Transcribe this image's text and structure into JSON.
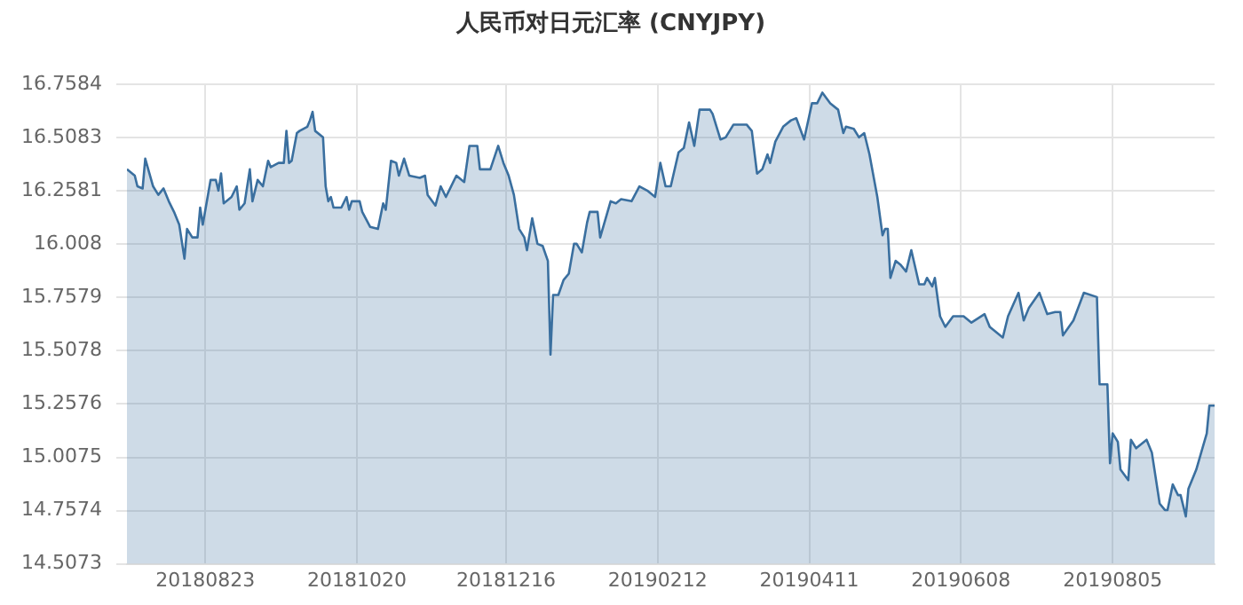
{
  "chart_data": {
    "type": "area",
    "title": "人民币对日元汇率 (CNYJPY)",
    "x": [
      "2018-07-24",
      "2018-07-27",
      "2018-07-28",
      "2018-07-30",
      "2018-07-31",
      "2018-08-03",
      "2018-08-05",
      "2018-08-07",
      "2018-08-09",
      "2018-08-11",
      "2018-08-13",
      "2018-08-15",
      "2018-08-16",
      "2018-08-18",
      "2018-08-20",
      "2018-08-21",
      "2018-08-22",
      "2018-08-25",
      "2018-08-27",
      "2018-08-28",
      "2018-08-29",
      "2018-08-30",
      "2018-09-02",
      "2018-09-04",
      "2018-09-05",
      "2018-09-07",
      "2018-09-09",
      "2018-09-10",
      "2018-09-12",
      "2018-09-14",
      "2018-09-16",
      "2018-09-17",
      "2018-09-20",
      "2018-09-22",
      "2018-09-23",
      "2018-09-24",
      "2018-09-25",
      "2018-09-27",
      "2018-09-28",
      "2018-10-01",
      "2018-10-02",
      "2018-10-03",
      "2018-10-04",
      "2018-10-07",
      "2018-10-08",
      "2018-10-09",
      "2018-10-10",
      "2018-10-11",
      "2018-10-14",
      "2018-10-16",
      "2018-10-17",
      "2018-10-18",
      "2018-10-21",
      "2018-10-22",
      "2018-10-25",
      "2018-10-28",
      "2018-10-30",
      "2018-10-31",
      "2018-11-02",
      "2018-11-04",
      "2018-11-05",
      "2018-11-07",
      "2018-11-09",
      "2018-11-13",
      "2018-11-15",
      "2018-11-16",
      "2018-11-19",
      "2018-11-21",
      "2018-11-23",
      "2018-11-27",
      "2018-11-30",
      "2018-12-02",
      "2018-12-05",
      "2018-12-06",
      "2018-12-10",
      "2018-12-13",
      "2018-12-15",
      "2018-12-17",
      "2018-12-19",
      "2018-12-21",
      "2018-12-23",
      "2018-12-24",
      "2018-12-26",
      "2018-12-28",
      "2018-12-30",
      "2019-01-01",
      "2019-01-02",
      "2019-01-03",
      "2019-01-05",
      "2019-01-07",
      "2019-01-09",
      "2019-01-11",
      "2019-01-12",
      "2019-01-14",
      "2019-01-16",
      "2019-01-17",
      "2019-01-20",
      "2019-01-21",
      "2019-01-25",
      "2019-01-27",
      "2019-01-29",
      "2019-02-02",
      "2019-02-05",
      "2019-02-08",
      "2019-02-11",
      "2019-02-13",
      "2019-02-15",
      "2019-02-17",
      "2019-02-20",
      "2019-02-22",
      "2019-02-24",
      "2019-02-26",
      "2019-02-28",
      "2019-03-04",
      "2019-03-05",
      "2019-03-08",
      "2019-03-10",
      "2019-03-13",
      "2019-03-18",
      "2019-03-20",
      "2019-03-22",
      "2019-03-24",
      "2019-03-26",
      "2019-03-27",
      "2019-03-29",
      "2019-04-01",
      "2019-04-04",
      "2019-04-06",
      "2019-04-09",
      "2019-04-12",
      "2019-04-14",
      "2019-04-16",
      "2019-04-19",
      "2019-04-22",
      "2019-04-24",
      "2019-04-25",
      "2019-04-28",
      "2019-04-30",
      "2019-05-02",
      "2019-05-04",
      "2019-05-07",
      "2019-05-09",
      "2019-05-10",
      "2019-05-11",
      "2019-05-12",
      "2019-05-14",
      "2019-05-16",
      "2019-05-18",
      "2019-05-20",
      "2019-05-23",
      "2019-05-25",
      "2019-05-26",
      "2019-05-28",
      "2019-05-29",
      "2019-05-31",
      "2019-06-02",
      "2019-06-05",
      "2019-06-09",
      "2019-06-12",
      "2019-06-17",
      "2019-06-19",
      "2019-06-24",
      "2019-06-26",
      "2019-06-30",
      "2019-07-02",
      "2019-07-04",
      "2019-07-08",
      "2019-07-11",
      "2019-07-14",
      "2019-07-16",
      "2019-07-17",
      "2019-07-21",
      "2019-07-25",
      "2019-07-30",
      "2019-07-31",
      "2019-08-03",
      "2019-08-04",
      "2019-08-05",
      "2019-08-07",
      "2019-08-08",
      "2019-08-11",
      "2019-08-12",
      "2019-08-14",
      "2019-08-18",
      "2019-08-20",
      "2019-08-23",
      "2019-08-25",
      "2019-08-26",
      "2019-08-28",
      "2019-08-30",
      "2019-08-31",
      "2019-09-02",
      "2019-09-03",
      "2019-09-06",
      "2019-09-10",
      "2019-09-11",
      "2019-09-13"
    ],
    "series": [
      {
        "color": "#3a6f9f",
        "values": [
          16.36,
          16.33,
          16.28,
          16.27,
          16.41,
          16.28,
          16.24,
          16.27,
          16.21,
          16.16,
          16.1,
          15.94,
          16.08,
          16.04,
          16.04,
          16.18,
          16.1,
          16.31,
          16.31,
          16.26,
          16.34,
          16.2,
          16.23,
          16.28,
          16.17,
          16.2,
          16.36,
          16.21,
          16.31,
          16.28,
          16.4,
          16.37,
          16.39,
          16.39,
          16.54,
          16.39,
          16.4,
          16.53,
          16.54,
          16.56,
          16.59,
          16.63,
          16.54,
          16.51,
          16.28,
          16.21,
          16.23,
          16.18,
          16.18,
          16.23,
          16.17,
          16.21,
          16.21,
          16.16,
          16.09,
          16.08,
          16.2,
          16.17,
          16.4,
          16.39,
          16.33,
          16.41,
          16.33,
          16.32,
          16.33,
          16.24,
          16.19,
          16.28,
          16.23,
          16.33,
          16.3,
          16.47,
          16.47,
          16.36,
          16.36,
          16.47,
          16.39,
          16.33,
          16.24,
          16.08,
          16.04,
          15.98,
          16.13,
          16.01,
          16.0,
          15.93,
          15.49,
          15.77,
          15.77,
          15.84,
          15.87,
          16.01,
          16.01,
          15.97,
          16.11,
          16.16,
          16.16,
          16.04,
          16.21,
          16.2,
          16.22,
          16.21,
          16.28,
          16.26,
          16.23,
          16.39,
          16.28,
          16.28,
          16.44,
          16.46,
          16.58,
          16.47,
          16.64,
          16.64,
          16.62,
          16.5,
          16.51,
          16.57,
          16.57,
          16.54,
          16.34,
          16.36,
          16.43,
          16.39,
          16.49,
          16.56,
          16.59,
          16.6,
          16.5,
          16.67,
          16.67,
          16.72,
          16.67,
          16.64,
          16.53,
          16.56,
          16.55,
          16.51,
          16.53,
          16.43,
          16.23,
          16.05,
          16.08,
          16.08,
          15.85,
          15.93,
          15.91,
          15.88,
          15.98,
          15.82,
          15.82,
          15.85,
          15.81,
          15.85,
          15.67,
          15.62,
          15.67,
          15.67,
          15.64,
          15.68,
          15.62,
          15.57,
          15.67,
          15.78,
          15.65,
          15.71,
          15.78,
          15.68,
          15.69,
          15.69,
          15.58,
          15.65,
          15.78,
          15.76,
          15.35,
          15.35,
          14.98,
          15.12,
          15.08,
          14.95,
          14.9,
          15.09,
          15.05,
          15.09,
          15.03,
          14.79,
          14.76,
          14.76,
          14.88,
          14.83,
          14.83,
          14.73,
          14.86,
          14.95,
          15.12,
          15.25,
          15.25
        ]
      }
    ],
    "xlim": [
      "2018-07-24",
      "2019-09-13"
    ],
    "xticks": [
      {
        "value": "2018-08-23",
        "label": "20180823"
      },
      {
        "value": "2018-10-20",
        "label": "20181020"
      },
      {
        "value": "2018-12-16",
        "label": "20181216"
      },
      {
        "value": "2019-02-12",
        "label": "20190212"
      },
      {
        "value": "2019-04-11",
        "label": "20190411"
      },
      {
        "value": "2019-06-08",
        "label": "20190608"
      },
      {
        "value": "2019-08-05",
        "label": "20190805"
      }
    ],
    "ylim": [
      14.5073,
      16.7584
    ],
    "yticks": [
      14.5073,
      14.7574,
      15.0075,
      15.2576,
      15.5078,
      15.7579,
      16.008,
      16.2581,
      16.5083,
      16.7584
    ],
    "grid": true,
    "legend": false,
    "marker": "none",
    "line_style": "solid"
  }
}
